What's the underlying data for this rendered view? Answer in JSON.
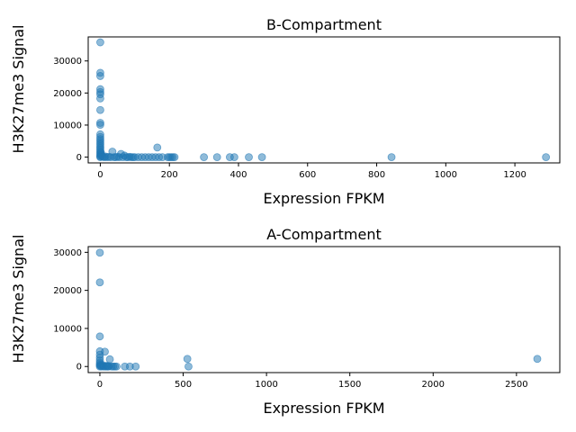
{
  "chart_data": [
    {
      "type": "scatter",
      "title": "B-Compartment",
      "xlabel": "Expression FPKM",
      "ylabel": "H3K27me3 Signal",
      "xlim": [
        -35,
        1330
      ],
      "ylim": [
        -1800,
        37500
      ],
      "xticks": [
        0,
        200,
        400,
        600,
        800,
        1000,
        1200
      ],
      "yticks": [
        0,
        10000,
        20000,
        30000
      ],
      "grid": false,
      "color": "#1f77b4",
      "points": [
        [
          0,
          35800
        ],
        [
          0,
          26300
        ],
        [
          0,
          25300
        ],
        [
          0,
          21200
        ],
        [
          0,
          20300
        ],
        [
          0,
          19600
        ],
        [
          0,
          18300
        ],
        [
          0,
          14700
        ],
        [
          0,
          10700
        ],
        [
          0,
          10100
        ],
        [
          0,
          7100
        ],
        [
          0,
          6300
        ],
        [
          0,
          5600
        ],
        [
          0,
          5000
        ],
        [
          0,
          4400
        ],
        [
          0,
          3900
        ],
        [
          0,
          3300
        ],
        [
          0,
          2800
        ],
        [
          0,
          2300
        ],
        [
          0,
          1800
        ],
        [
          0,
          1300
        ],
        [
          0,
          900
        ],
        [
          0,
          500
        ],
        [
          0,
          200
        ],
        [
          0,
          0
        ],
        [
          2,
          1400
        ],
        [
          3,
          700
        ],
        [
          5,
          300
        ],
        [
          8,
          100
        ],
        [
          12,
          0
        ],
        [
          15,
          200
        ],
        [
          20,
          0
        ],
        [
          25,
          100
        ],
        [
          30,
          0
        ],
        [
          35,
          1700
        ],
        [
          40,
          0
        ],
        [
          45,
          0
        ],
        [
          50,
          100
        ],
        [
          55,
          0
        ],
        [
          60,
          1000
        ],
        [
          65,
          0
        ],
        [
          70,
          500
        ],
        [
          75,
          0
        ],
        [
          80,
          0
        ],
        [
          85,
          100
        ],
        [
          90,
          0
        ],
        [
          95,
          0
        ],
        [
          100,
          0
        ],
        [
          110,
          0
        ],
        [
          120,
          0
        ],
        [
          130,
          0
        ],
        [
          140,
          0
        ],
        [
          150,
          0
        ],
        [
          160,
          0
        ],
        [
          165,
          3000
        ],
        [
          170,
          0
        ],
        [
          180,
          0
        ],
        [
          195,
          0
        ],
        [
          200,
          0
        ],
        [
          205,
          0
        ],
        [
          210,
          0
        ],
        [
          215,
          0
        ],
        [
          300,
          0
        ],
        [
          338,
          0
        ],
        [
          375,
          0
        ],
        [
          388,
          0
        ],
        [
          430,
          0
        ],
        [
          468,
          0
        ],
        [
          843,
          0
        ],
        [
          1290,
          0
        ]
      ]
    },
    {
      "type": "scatter",
      "title": "A-Compartment",
      "xlabel": "Expression FPKM",
      "ylabel": "H3K27me3 Signal",
      "xlim": [
        -70,
        2760
      ],
      "ylim": [
        -1600,
        31500
      ],
      "xticks": [
        0,
        500,
        1000,
        1500,
        2000,
        2500
      ],
      "yticks": [
        0,
        10000,
        20000,
        30000
      ],
      "grid": false,
      "color": "#1f77b4",
      "points": [
        [
          0,
          29900
        ],
        [
          0,
          22100
        ],
        [
          0,
          7900
        ],
        [
          0,
          4000
        ],
        [
          0,
          3100
        ],
        [
          0,
          2300
        ],
        [
          0,
          1600
        ],
        [
          0,
          1000
        ],
        [
          0,
          600
        ],
        [
          0,
          300
        ],
        [
          0,
          0
        ],
        [
          5,
          200
        ],
        [
          10,
          0
        ],
        [
          15,
          400
        ],
        [
          20,
          100
        ],
        [
          25,
          0
        ],
        [
          30,
          3900
        ],
        [
          35,
          0
        ],
        [
          40,
          200
        ],
        [
          45,
          0
        ],
        [
          50,
          0
        ],
        [
          55,
          100
        ],
        [
          60,
          1900
        ],
        [
          70,
          0
        ],
        [
          80,
          0
        ],
        [
          90,
          0
        ],
        [
          100,
          0
        ],
        [
          150,
          0
        ],
        [
          180,
          0
        ],
        [
          215,
          0
        ],
        [
          525,
          2000
        ],
        [
          532,
          0
        ],
        [
          2625,
          2000
        ]
      ]
    }
  ]
}
